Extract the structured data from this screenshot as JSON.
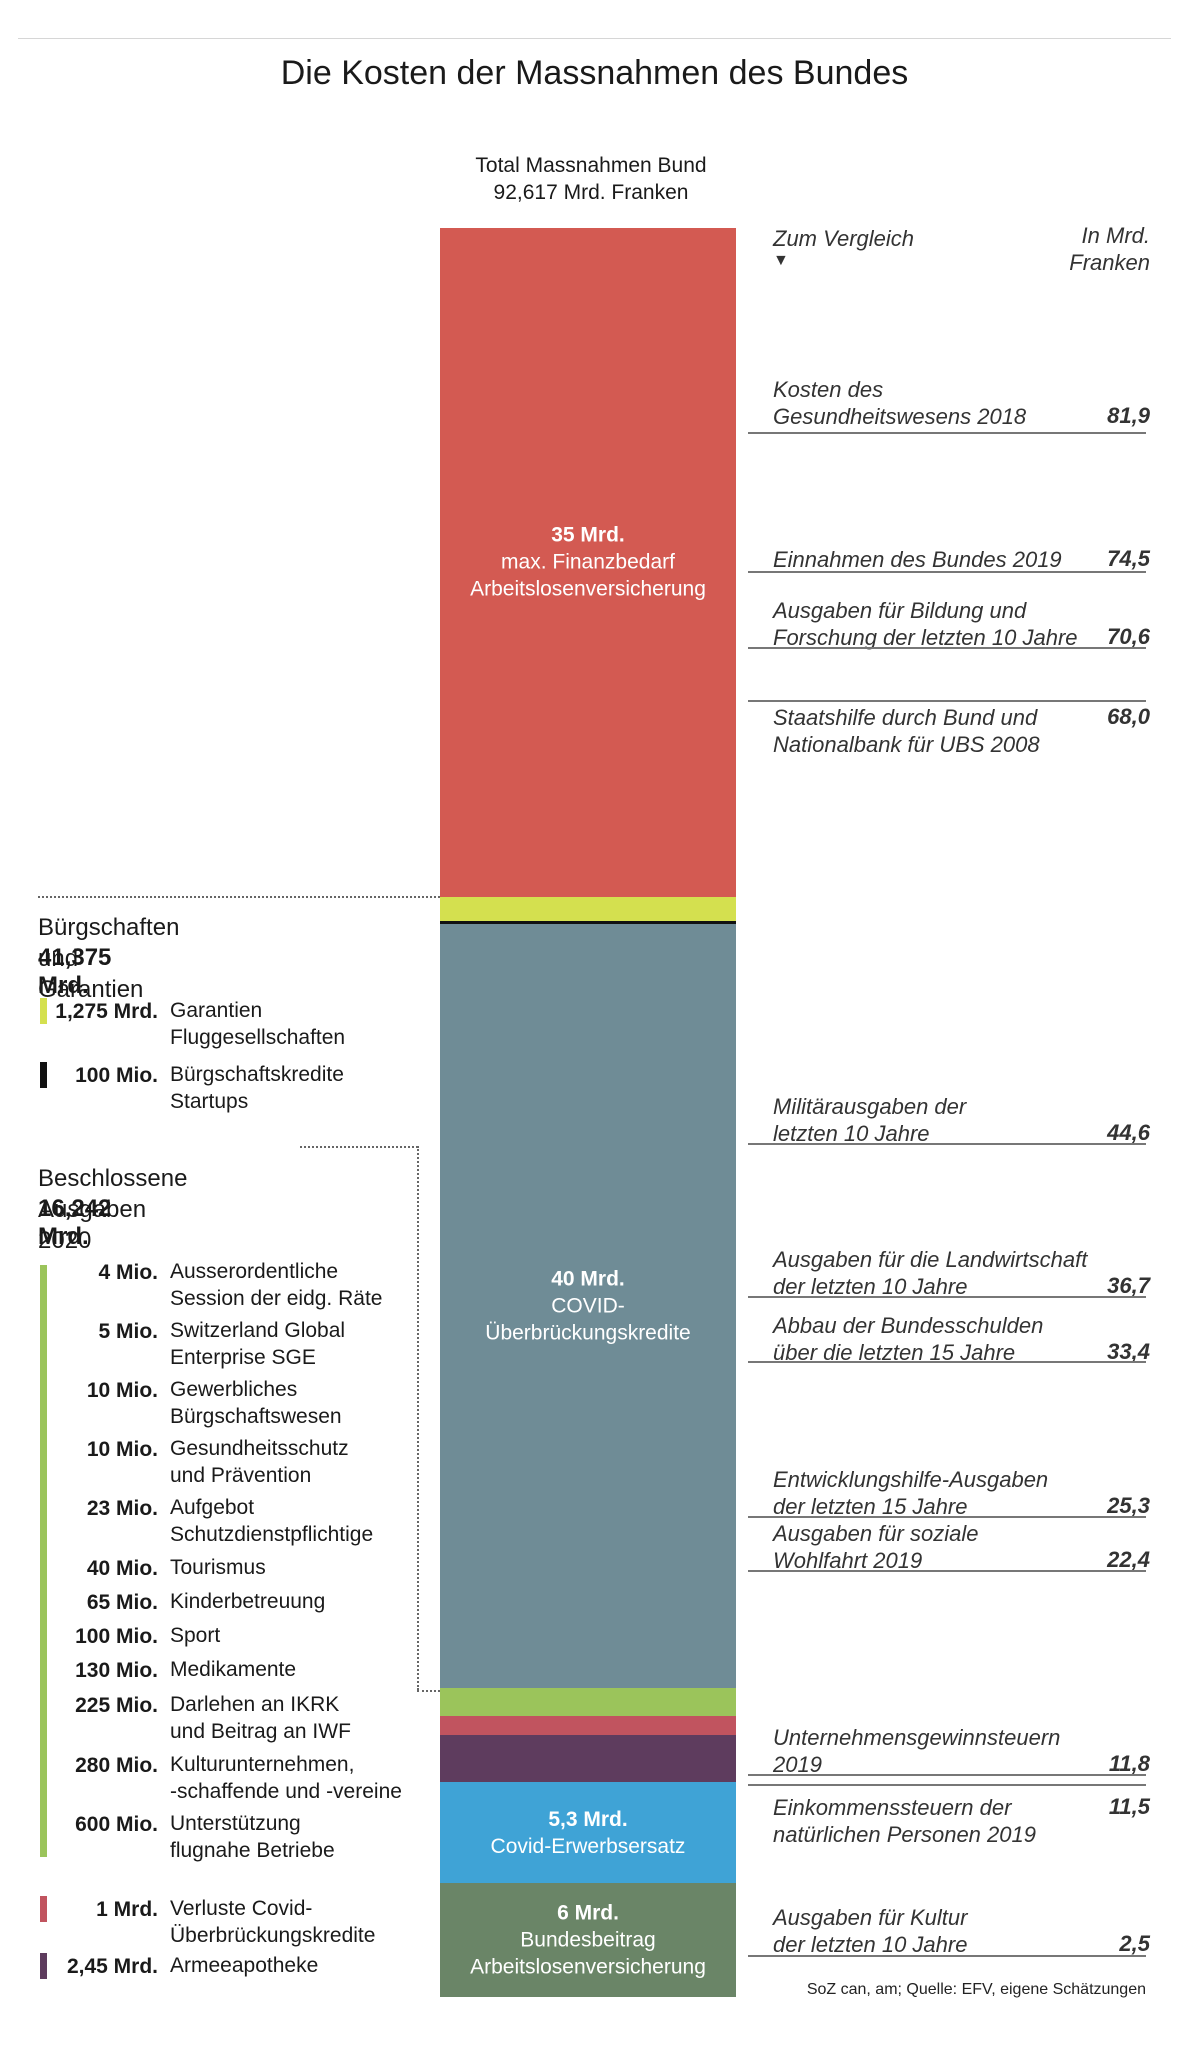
{
  "title": "Die Kosten der Massnahmen des Bundes",
  "total": {
    "line1": "Total Massnahmen Bund",
    "line2": "92,617 Mrd. Franken"
  },
  "comparison_header": {
    "left": "Zum Vergleich",
    "arrow": "▼",
    "right1": "In Mrd.",
    "right2": "Franken"
  },
  "colors": {
    "alv": "#d35a52",
    "garantien": "#d4e04f",
    "buergschaft": "#111111",
    "covid_kredite": "#6f8c96",
    "ausgaben": "#9bc45b",
    "verluste": "#c1545f",
    "armee": "#5e3c5e",
    "erwerbsersatz": "#3fa3d6",
    "bundesbeitrag": "#6a8567"
  },
  "chart_data": {
    "type": "bar",
    "title": "Die Kosten der Massnahmen des Bundes",
    "unit": "Mrd. Franken",
    "total": 92.617,
    "segments": [
      {
        "key": "alv",
        "value": 35,
        "label": [
          "35 Mrd.",
          "max. Finanzbedarf",
          "Arbeitslosenversicherung"
        ]
      },
      {
        "key": "garantien",
        "value": 1.275,
        "label": []
      },
      {
        "key": "buergschaft",
        "value": 0.1,
        "label": []
      },
      {
        "key": "covid_kredite",
        "value": 40,
        "label": [
          "40 Mrd.",
          "COVID-",
          "Überbrückungskredite"
        ]
      },
      {
        "key": "ausgaben",
        "value": 1.492,
        "label": []
      },
      {
        "key": "verluste",
        "value": 1,
        "label": []
      },
      {
        "key": "armee",
        "value": 2.45,
        "label": []
      },
      {
        "key": "erwerbsersatz",
        "value": 5.3,
        "label": [
          "5,3 Mrd.",
          "Covid-Erwerbsersatz"
        ]
      },
      {
        "key": "bundesbeitrag",
        "value": 6,
        "label": [
          "6 Mrd.",
          "Bundesbeitrag",
          "Arbeitslosenversicherung"
        ]
      }
    ],
    "comparisons": [
      {
        "lines": [
          "Kosten des",
          "Gesundheitswesens 2018"
        ],
        "value": "81,9"
      },
      {
        "lines": [
          "Einnahmen des Bundes 2019"
        ],
        "value": "74,5"
      },
      {
        "lines": [
          "Ausgaben für Bildung und",
          "Forschung der letzten 10 Jahre"
        ],
        "value": "70,6"
      },
      {
        "lines": [
          "Staatshilfe durch Bund und",
          "Nationalbank für UBS 2008"
        ],
        "value": "68,0"
      },
      {
        "lines": [
          "Militärausgaben der",
          "letzten 10 Jahre"
        ],
        "value": "44,6"
      },
      {
        "lines": [
          "Ausgaben für die Landwirtschaft",
          "der letzten 10 Jahre"
        ],
        "value": "36,7"
      },
      {
        "lines": [
          "Abbau der Bundesschulden",
          "über die letzten 15 Jahre"
        ],
        "value": "33,4"
      },
      {
        "lines": [
          "Entwicklungshilfe-Ausgaben",
          "der letzten 15 Jahre"
        ],
        "value": "25,3"
      },
      {
        "lines": [
          "Ausgaben für soziale",
          "Wohlfahrt 2019"
        ],
        "value": "22,4"
      },
      {
        "lines": [
          "Unternehmensgewinnsteuern",
          "2019"
        ],
        "value": "11,8"
      },
      {
        "lines": [
          "Einkommenssteuern der",
          "natürlichen Personen 2019"
        ],
        "value": "11,5"
      },
      {
        "lines": [
          "Ausgaben für Kultur",
          "der letzten 10 Jahre"
        ],
        "value": "2,5"
      }
    ],
    "groups": [
      {
        "title": "Bürgschaften und Garantien",
        "total": "41,375 Mrd.",
        "items": [
          {
            "amount": "1,275 Mrd.",
            "lines": [
              "Garantien",
              "Fluggesellschaften"
            ],
            "color": "#d4e04f"
          },
          {
            "amount": "100 Mio.",
            "lines": [
              "Bürgschaftskredite",
              "Startups"
            ],
            "color": "#111111"
          }
        ]
      },
      {
        "title": "Beschlossene Ausgaben 2020",
        "total": "16,242 Mrd.",
        "items": [
          {
            "amount": "4 Mio.",
            "lines": [
              "Ausserordentliche",
              "Session der eidg. Räte"
            ]
          },
          {
            "amount": "5 Mio.",
            "lines": [
              "Switzerland Global",
              "Enterprise SGE"
            ]
          },
          {
            "amount": "10 Mio.",
            "lines": [
              "Gewerbliches",
              "Bürgschaftswesen"
            ]
          },
          {
            "amount": "10 Mio.",
            "lines": [
              "Gesundheitsschutz",
              "und Prävention"
            ]
          },
          {
            "amount": "23 Mio.",
            "lines": [
              "Aufgebot",
              "Schutzdienstpflichtige"
            ]
          },
          {
            "amount": "40 Mio.",
            "lines": [
              "Tourismus"
            ]
          },
          {
            "amount": "65 Mio.",
            "lines": [
              "Kinderbetreuung"
            ]
          },
          {
            "amount": "100 Mio.",
            "lines": [
              "Sport"
            ]
          },
          {
            "amount": "130 Mio.",
            "lines": [
              "Medikamente"
            ]
          },
          {
            "amount": "225 Mio.",
            "lines": [
              "Darlehen an IKRK",
              "und Beitrag an IWF"
            ]
          },
          {
            "amount": "280 Mio.",
            "lines": [
              "Kulturunternehmen,",
              "-schaffende und -vereine"
            ]
          },
          {
            "amount": "600 Mio.",
            "lines": [
              "Unterstützung",
              "flugnahe Betriebe"
            ]
          },
          {
            "amount": "1 Mrd.",
            "lines": [
              "Verluste Covid-",
              "Überbrückungskredite"
            ],
            "color": "#c1545f"
          },
          {
            "amount": "2,45 Mrd.",
            "lines": [
              "Armeeapotheke"
            ],
            "color": "#5e3c5e"
          }
        ]
      }
    ]
  },
  "source": "SoZ can, am; Quelle: EFV, eigene Schätzungen"
}
